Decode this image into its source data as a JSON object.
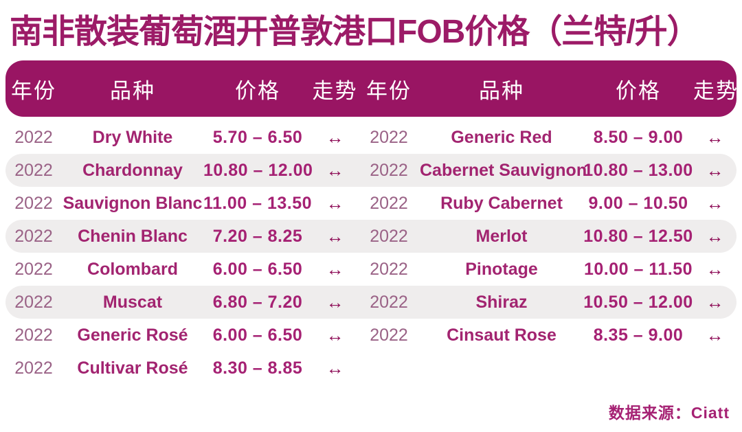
{
  "title": "南非散装葡萄酒开普敦港口FOB价格（兰特/升）",
  "source": "数据来源：Ciatt",
  "columns": {
    "year": "年份",
    "variety": "品种",
    "price": "价格",
    "trend": "走势"
  },
  "colors": {
    "header_bg": "#991563",
    "title_text": "#9C1B67",
    "stripe": "#EFEDED",
    "accent_magenta": "#A52173",
    "arrow": "#8E0F58",
    "year_text": "#9A6286"
  },
  "chart_data": {
    "type": "table",
    "title": "南非散装葡萄酒开普敦港口FOB价格（兰特/升）",
    "columns": [
      "年份",
      "品种",
      "价格",
      "走势"
    ],
    "trend_meaning": "stable",
    "source": "数据来源：Ciatt",
    "left": {
      "rows": [
        {
          "year": "2022",
          "variety": "Dry White",
          "price": "5.70 – 6.50",
          "price_min": 5.7,
          "price_max": 6.5,
          "trend": "↔"
        },
        {
          "year": "2022",
          "variety": "Chardonnay",
          "price": "10.80 – 12.00",
          "price_min": 10.8,
          "price_max": 12.0,
          "trend": "↔"
        },
        {
          "year": "2022",
          "variety": "Sauvignon Blanc",
          "price": "11.00 – 13.50",
          "price_min": 11.0,
          "price_max": 13.5,
          "trend": "↔"
        },
        {
          "year": "2022",
          "variety": "Chenin Blanc",
          "price": "7.20 – 8.25",
          "price_min": 7.2,
          "price_max": 8.25,
          "trend": "↔"
        },
        {
          "year": "2022",
          "variety": "Colombard",
          "price": "6.00 – 6.50",
          "price_min": 6.0,
          "price_max": 6.5,
          "trend": "↔"
        },
        {
          "year": "2022",
          "variety": "Muscat",
          "price": "6.80 – 7.20",
          "price_min": 6.8,
          "price_max": 7.2,
          "trend": "↔"
        },
        {
          "year": "2022",
          "variety": "Generic Rosé",
          "price": "6.00 – 6.50",
          "price_min": 6.0,
          "price_max": 6.5,
          "trend": "↔"
        },
        {
          "year": "2022",
          "variety": "Cultivar Rosé",
          "price": "8.30 – 8.85",
          "price_min": 8.3,
          "price_max": 8.85,
          "trend": "↔"
        }
      ]
    },
    "right": {
      "rows": [
        {
          "year": "2022",
          "variety": "Generic Red",
          "price": "8.50 – 9.00",
          "price_min": 8.5,
          "price_max": 9.0,
          "trend": "↔"
        },
        {
          "year": "2022",
          "variety": "Cabernet Sauvignon",
          "price": "10.80 – 13.00",
          "price_min": 10.8,
          "price_max": 13.0,
          "trend": "↔"
        },
        {
          "year": "2022",
          "variety": "Ruby Cabernet",
          "price": "9.00 – 10.50",
          "price_min": 9.0,
          "price_max": 10.5,
          "trend": "↔"
        },
        {
          "year": "2022",
          "variety": "Merlot",
          "price": "10.80 – 12.50",
          "price_min": 10.8,
          "price_max": 12.5,
          "trend": "↔"
        },
        {
          "year": "2022",
          "variety": "Pinotage",
          "price": "10.00 – 11.50",
          "price_min": 10.0,
          "price_max": 11.5,
          "trend": "↔"
        },
        {
          "year": "2022",
          "variety": "Shiraz",
          "price": "10.50 – 12.00",
          "price_min": 10.5,
          "price_max": 12.0,
          "trend": "↔"
        },
        {
          "year": "2022",
          "variety": "Cinsaut Rose",
          "price": "8.35 – 9.00",
          "price_min": 8.35,
          "price_max": 9.0,
          "trend": "↔"
        }
      ]
    }
  }
}
